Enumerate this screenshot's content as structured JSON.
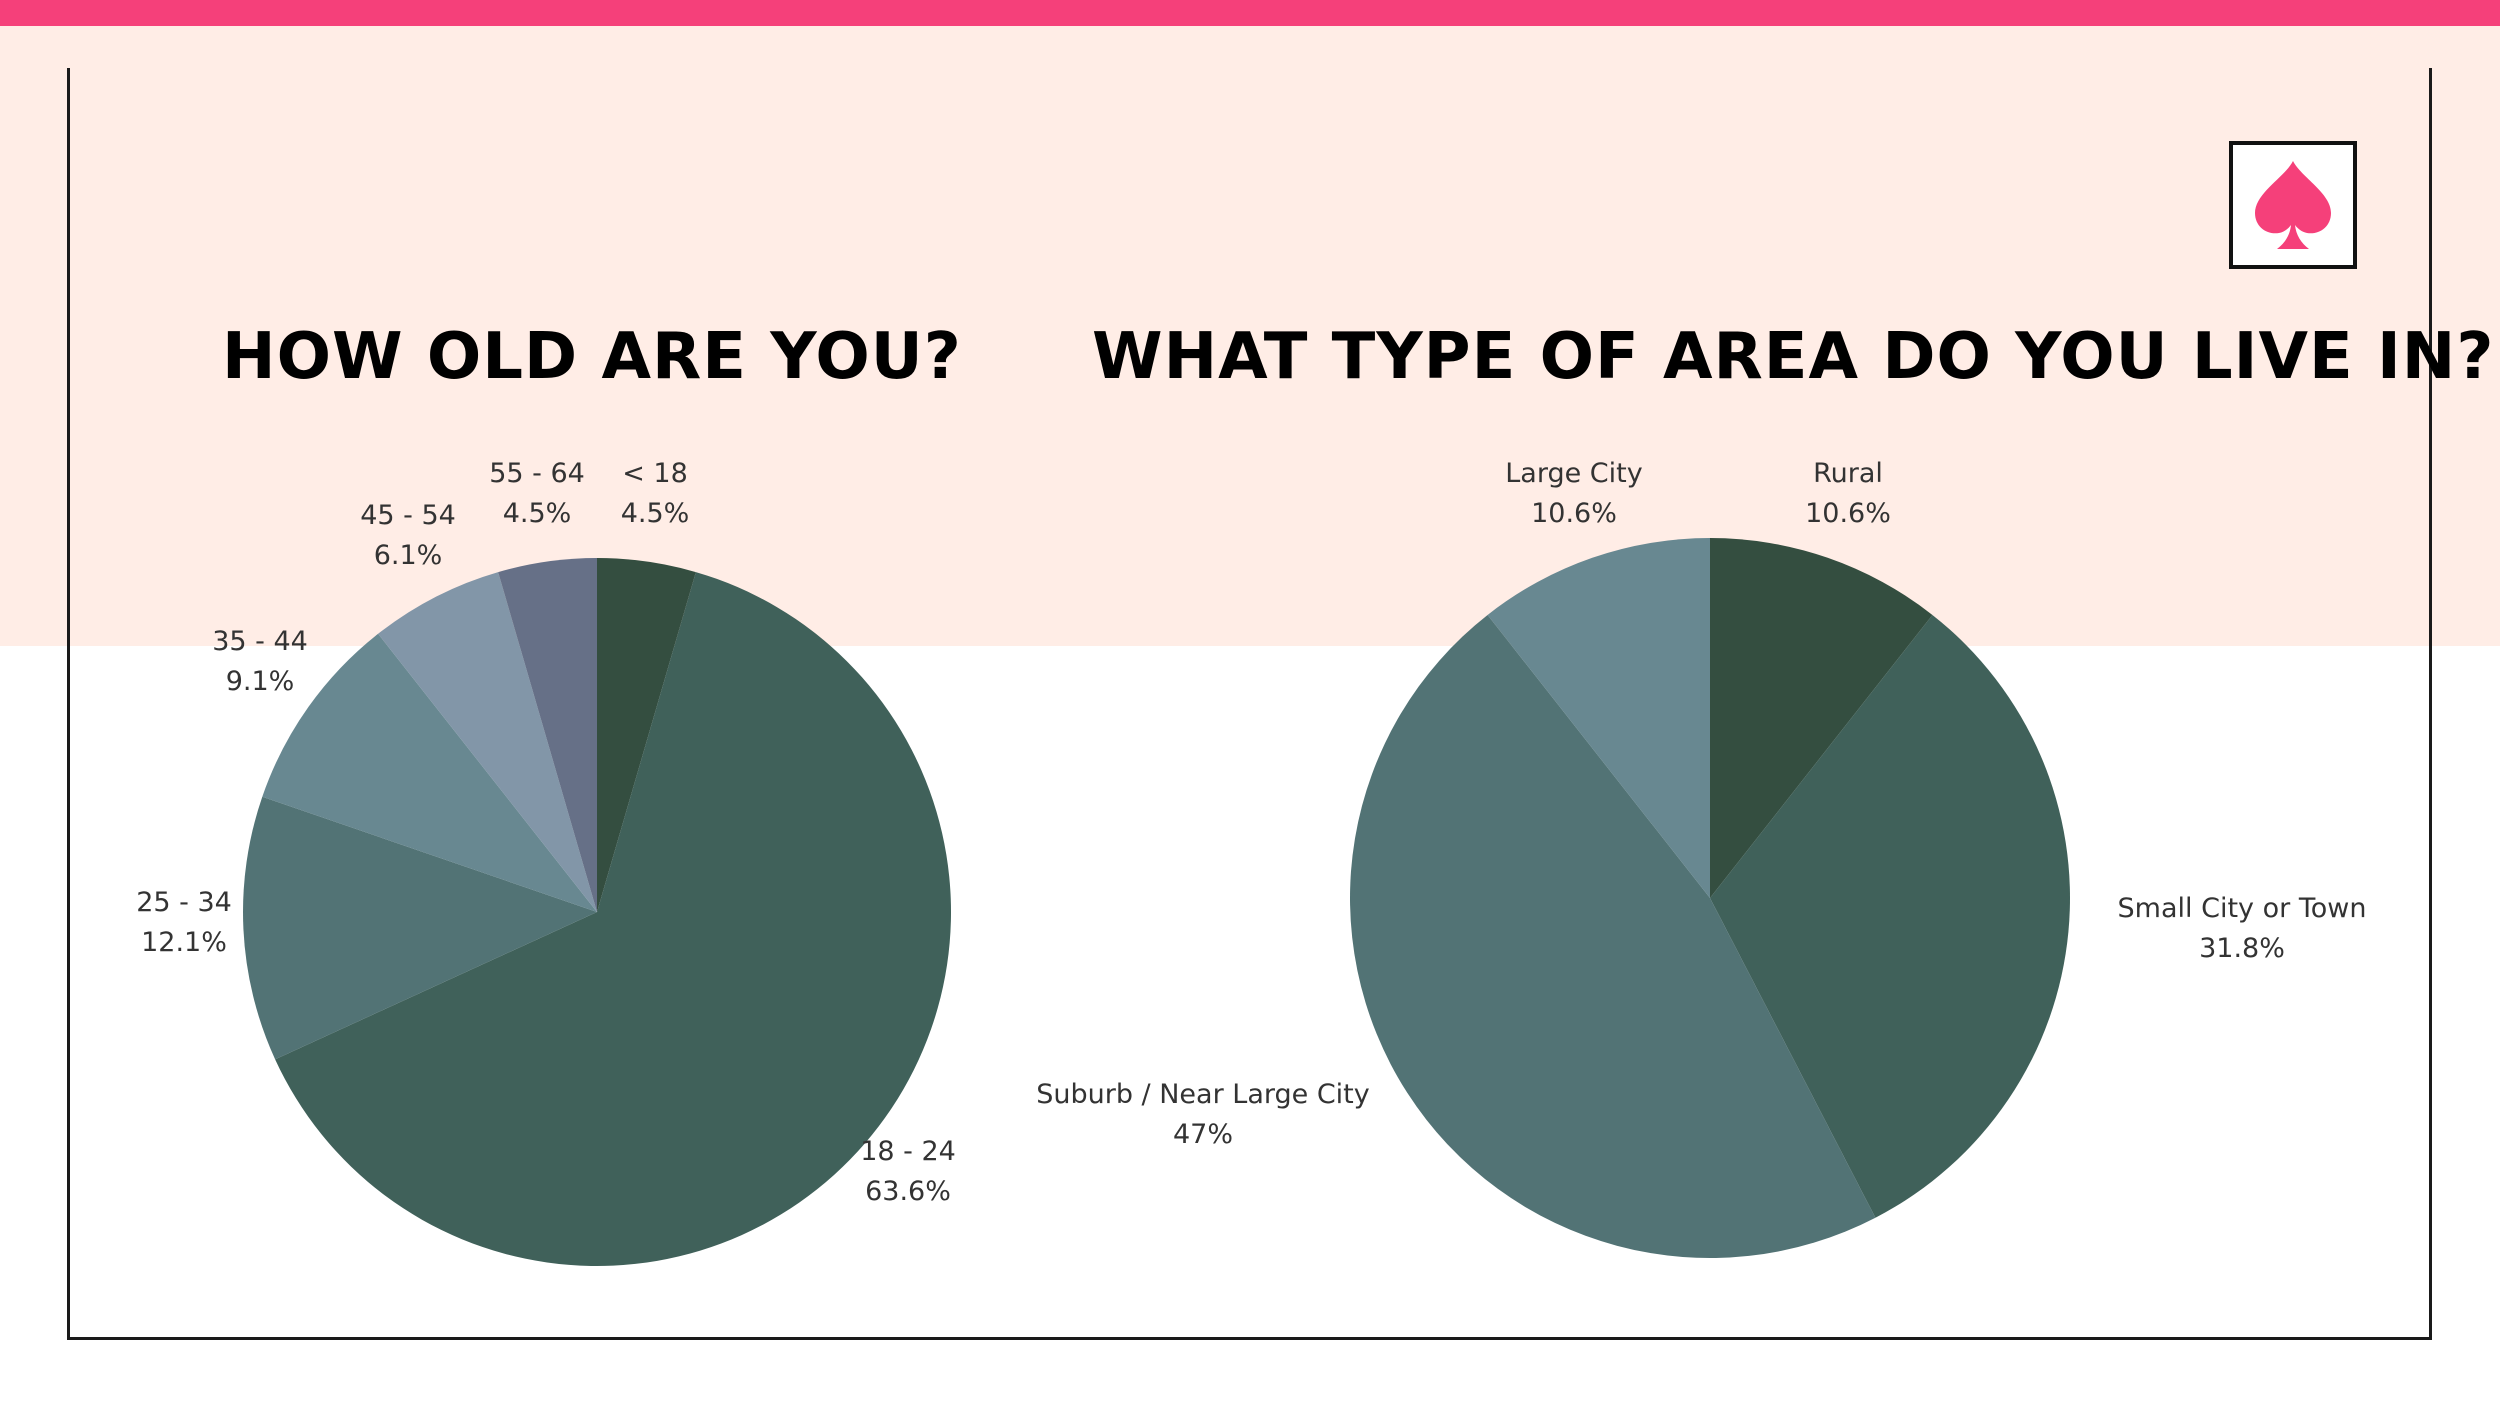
{
  "colors": {
    "top_bar": "#f5407a",
    "header_band": "#ffede6",
    "frame": "#1a1a1a",
    "logo_icon": "#f5407a"
  },
  "logo": {
    "icon": "spade-icon"
  },
  "chart_data": [
    {
      "type": "pie",
      "title": "HOW OLD ARE YOU?",
      "start": "12 o'clock",
      "direction": "clockwise",
      "slices": [
        {
          "label": "< 18",
          "value": 4.5,
          "value_label": "4.5%",
          "color": "#344e40"
        },
        {
          "label": "18 - 24",
          "value": 63.6,
          "value_label": "63.6%",
          "color": "#40615a"
        },
        {
          "label": "25 - 34",
          "value": 12.1,
          "value_label": "12.1%",
          "color": "#527375"
        },
        {
          "label": "35 - 44",
          "value": 9.1,
          "value_label": "9.1%",
          "color": "#688891"
        },
        {
          "label": "45 - 54",
          "value": 6.1,
          "value_label": "6.1%",
          "color": "#8296a8"
        },
        {
          "label": "55 - 64",
          "value": 4.5,
          "value_label": "4.5%",
          "color": "#667087"
        }
      ]
    },
    {
      "type": "pie",
      "title": "WHAT TYPE OF AREA DO YOU LIVE IN?",
      "start": "12 o'clock",
      "direction": "clockwise",
      "slices": [
        {
          "label": "Rural",
          "value": 10.6,
          "value_label": "10.6%",
          "color": "#344e40"
        },
        {
          "label": "Small City or Town",
          "value": 31.8,
          "value_label": "31.8%",
          "color": "#40615a"
        },
        {
          "label": "Suburb / Near Large City",
          "value": 47,
          "value_label": "47%",
          "color": "#527375"
        },
        {
          "label": "Large City",
          "value": 10.6,
          "value_label": "10.6%",
          "color": "#688891"
        }
      ]
    }
  ]
}
